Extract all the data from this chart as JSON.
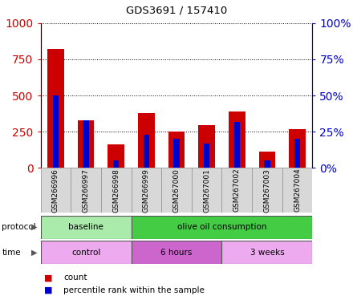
{
  "title": "GDS3691 / 157410",
  "samples": [
    "GSM266996",
    "GSM266997",
    "GSM266998",
    "GSM266999",
    "GSM267000",
    "GSM267001",
    "GSM267002",
    "GSM267003",
    "GSM267004"
  ],
  "count_values": [
    820,
    330,
    165,
    380,
    250,
    295,
    390,
    110,
    265
  ],
  "percentile_values": [
    50,
    33,
    5,
    23,
    20,
    17,
    32,
    5,
    20
  ],
  "count_color": "#cc0000",
  "percentile_color": "#0000cc",
  "left_ylim": [
    0,
    1000
  ],
  "right_ylim": [
    0,
    100
  ],
  "left_yticks": [
    0,
    250,
    500,
    750,
    1000
  ],
  "right_yticks": [
    0,
    25,
    50,
    75,
    100
  ],
  "right_yticklabels": [
    "0%",
    "25%",
    "50%",
    "75%",
    "100%"
  ],
  "protocol_groups": [
    {
      "label": "baseline",
      "start": 0,
      "end": 3,
      "color": "#aaeaaa"
    },
    {
      "label": "olive oil consumption",
      "start": 3,
      "end": 9,
      "color": "#44cc44"
    }
  ],
  "time_groups": [
    {
      "label": "control",
      "start": 0,
      "end": 3,
      "color": "#eeaaee"
    },
    {
      "label": "6 hours",
      "start": 3,
      "end": 6,
      "color": "#cc66cc"
    },
    {
      "label": "3 weeks",
      "start": 6,
      "end": 9,
      "color": "#eeaaee"
    }
  ],
  "protocol_label": "protocol",
  "time_label": "time",
  "legend_count": "count",
  "legend_percentile": "percentile rank within the sample",
  "bar_width": 0.55,
  "bg_color": "white"
}
